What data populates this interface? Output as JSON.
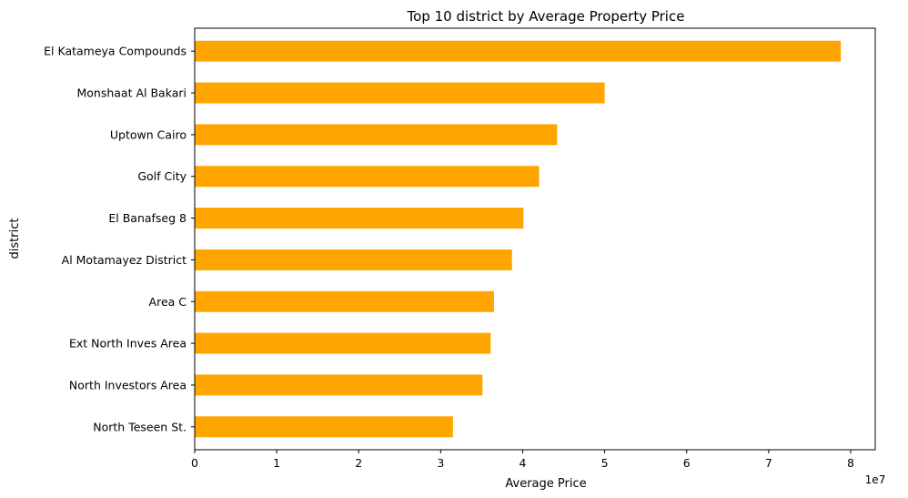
{
  "chart_data": {
    "type": "bar",
    "orientation": "horizontal",
    "title": "Top 10 district by Average Property Price",
    "xlabel": "Average Price",
    "ylabel": "district",
    "x_scale_label": "1e7",
    "xlim": [
      0,
      8.3
    ],
    "x_ticks": [
      0,
      1,
      2,
      3,
      4,
      5,
      6,
      7,
      8
    ],
    "x_tick_labels": [
      "0",
      "1",
      "2",
      "3",
      "4",
      "5",
      "6",
      "7",
      "8"
    ],
    "categories": [
      "El Katameya Compounds",
      "Monshaat Al Bakari",
      "Uptown Cairo",
      "Golf City",
      "El Banafseg 8",
      "Al Motamayez District",
      "Area C",
      "Ext North Inves Area",
      "North Investors Area",
      "North Teseen St."
    ],
    "values": [
      7.88,
      5.0,
      4.42,
      4.2,
      4.01,
      3.87,
      3.65,
      3.61,
      3.51,
      3.15
    ],
    "bar_color": "#FFA500",
    "grid": false,
    "legend": false
  }
}
